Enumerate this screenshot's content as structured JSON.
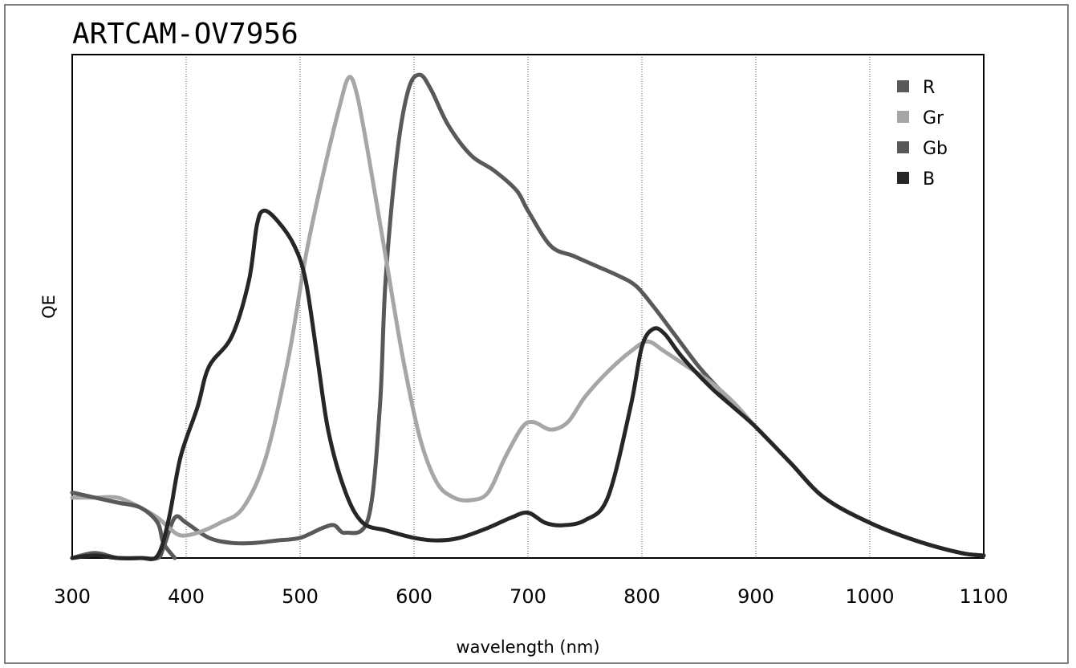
{
  "chart_data": {
    "type": "line",
    "title": "ARTCAM-OV7956",
    "xlabel": "wavelength (nm)",
    "ylabel": "QE",
    "xlim": [
      300,
      1100
    ],
    "ylim": [
      0,
      1
    ],
    "x_ticks": [
      "300",
      "400",
      "500",
      "600",
      "700",
      "800",
      "900",
      "1000",
      "1100"
    ],
    "grid": "vertical dotted",
    "legend_position": "top-right",
    "series": [
      {
        "name": "R",
        "color": "#595959",
        "points": [
          [
            300,
            0.0
          ],
          [
            320,
            0.01
          ],
          [
            340,
            0.0
          ],
          [
            360,
            0.0
          ],
          [
            375,
            0.0
          ],
          [
            380,
            0.02
          ],
          [
            390,
            0.08
          ],
          [
            400,
            0.07
          ],
          [
            420,
            0.04
          ],
          [
            440,
            0.03
          ],
          [
            460,
            0.03
          ],
          [
            480,
            0.035
          ],
          [
            500,
            0.04
          ],
          [
            520,
            0.06
          ],
          [
            530,
            0.065
          ],
          [
            540,
            0.05
          ],
          [
            560,
            0.08
          ],
          [
            570,
            0.3
          ],
          [
            575,
            0.55
          ],
          [
            585,
            0.8
          ],
          [
            595,
            0.93
          ],
          [
            605,
            0.96
          ],
          [
            615,
            0.93
          ],
          [
            630,
            0.86
          ],
          [
            650,
            0.8
          ],
          [
            670,
            0.77
          ],
          [
            690,
            0.73
          ],
          [
            700,
            0.69
          ],
          [
            720,
            0.62
          ],
          [
            740,
            0.6
          ],
          [
            760,
            0.58
          ],
          [
            780,
            0.56
          ],
          [
            795,
            0.54
          ],
          [
            810,
            0.5
          ],
          [
            830,
            0.44
          ],
          [
            850,
            0.38
          ],
          [
            870,
            0.33
          ],
          [
            900,
            0.26
          ],
          [
            930,
            0.19
          ],
          [
            960,
            0.12
          ],
          [
            1000,
            0.07
          ],
          [
            1040,
            0.035
          ],
          [
            1080,
            0.01
          ],
          [
            1100,
            0.005
          ]
        ]
      },
      {
        "name": "Gr",
        "color": "#a6a6a6",
        "points": [
          [
            300,
            0.12
          ],
          [
            320,
            0.12
          ],
          [
            340,
            0.12
          ],
          [
            360,
            0.1
          ],
          [
            375,
            0.08
          ],
          [
            385,
            0.06
          ],
          [
            395,
            0.045
          ],
          [
            410,
            0.05
          ],
          [
            430,
            0.07
          ],
          [
            450,
            0.1
          ],
          [
            470,
            0.2
          ],
          [
            490,
            0.4
          ],
          [
            505,
            0.6
          ],
          [
            520,
            0.76
          ],
          [
            535,
            0.9
          ],
          [
            543,
            0.955
          ],
          [
            550,
            0.92
          ],
          [
            560,
            0.8
          ],
          [
            575,
            0.6
          ],
          [
            590,
            0.4
          ],
          [
            605,
            0.24
          ],
          [
            620,
            0.15
          ],
          [
            635,
            0.12
          ],
          [
            650,
            0.115
          ],
          [
            665,
            0.13
          ],
          [
            680,
            0.2
          ],
          [
            695,
            0.26
          ],
          [
            705,
            0.27
          ],
          [
            720,
            0.255
          ],
          [
            735,
            0.27
          ],
          [
            750,
            0.32
          ],
          [
            770,
            0.37
          ],
          [
            790,
            0.41
          ],
          [
            805,
            0.43
          ],
          [
            820,
            0.41
          ],
          [
            840,
            0.38
          ],
          [
            860,
            0.35
          ],
          [
            880,
            0.31
          ],
          [
            900,
            0.26
          ],
          [
            930,
            0.19
          ],
          [
            960,
            0.12
          ],
          [
            1000,
            0.07
          ],
          [
            1040,
            0.035
          ],
          [
            1080,
            0.01
          ],
          [
            1100,
            0.005
          ]
        ]
      },
      {
        "name": "Gb",
        "color": "#595959",
        "points": [
          [
            300,
            0.13
          ],
          [
            320,
            0.12
          ],
          [
            340,
            0.11
          ],
          [
            360,
            0.1
          ],
          [
            375,
            0.07
          ],
          [
            380,
            0.03
          ],
          [
            390,
            0.0
          ]
        ]
      },
      {
        "name": "B",
        "color": "#262626",
        "points": [
          [
            300,
            0.0
          ],
          [
            320,
            0.005
          ],
          [
            340,
            0.0
          ],
          [
            360,
            0.0
          ],
          [
            375,
            0.005
          ],
          [
            385,
            0.08
          ],
          [
            395,
            0.2
          ],
          [
            410,
            0.3
          ],
          [
            420,
            0.38
          ],
          [
            440,
            0.44
          ],
          [
            455,
            0.55
          ],
          [
            462,
            0.66
          ],
          [
            468,
            0.69
          ],
          [
            480,
            0.67
          ],
          [
            495,
            0.62
          ],
          [
            505,
            0.55
          ],
          [
            515,
            0.4
          ],
          [
            525,
            0.25
          ],
          [
            540,
            0.13
          ],
          [
            555,
            0.07
          ],
          [
            575,
            0.055
          ],
          [
            600,
            0.04
          ],
          [
            620,
            0.035
          ],
          [
            640,
            0.04
          ],
          [
            665,
            0.06
          ],
          [
            685,
            0.08
          ],
          [
            700,
            0.09
          ],
          [
            715,
            0.07
          ],
          [
            730,
            0.065
          ],
          [
            750,
            0.075
          ],
          [
            770,
            0.12
          ],
          [
            790,
            0.3
          ],
          [
            800,
            0.42
          ],
          [
            810,
            0.455
          ],
          [
            820,
            0.445
          ],
          [
            835,
            0.4
          ],
          [
            860,
            0.34
          ],
          [
            880,
            0.3
          ],
          [
            900,
            0.26
          ],
          [
            930,
            0.19
          ],
          [
            960,
            0.12
          ],
          [
            1000,
            0.07
          ],
          [
            1040,
            0.035
          ],
          [
            1080,
            0.01
          ],
          [
            1100,
            0.005
          ]
        ]
      }
    ]
  }
}
